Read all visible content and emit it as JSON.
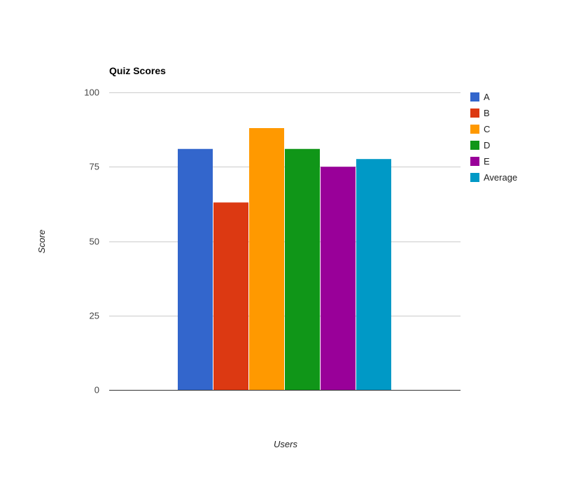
{
  "chart_data": {
    "type": "bar",
    "title": "Quiz Scores",
    "xlabel": "Users",
    "ylabel": "Score",
    "ylim": [
      0,
      100
    ],
    "yticks": [
      0,
      25,
      50,
      75,
      100
    ],
    "grid": true,
    "legend_position": "right",
    "categories": [
      ""
    ],
    "series": [
      {
        "name": "A",
        "values": [
          81
        ],
        "color": "#3366cc"
      },
      {
        "name": "B",
        "values": [
          63
        ],
        "color": "#dc3912"
      },
      {
        "name": "C",
        "values": [
          88
        ],
        "color": "#ff9900"
      },
      {
        "name": "D",
        "values": [
          81
        ],
        "color": "#109618"
      },
      {
        "name": "E",
        "values": [
          75
        ],
        "color": "#990099"
      },
      {
        "name": "Average",
        "values": [
          77.6
        ],
        "color": "#0099c6"
      }
    ]
  }
}
